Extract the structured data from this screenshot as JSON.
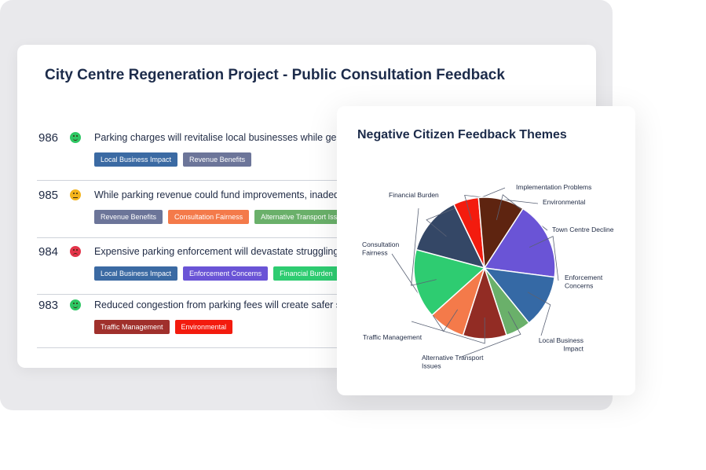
{
  "main": {
    "title": "City Centre Regeneration Project - Public Consultation Feedback",
    "rows": [
      {
        "number": "986",
        "sentiment": "positive",
        "text": "Parking charges will revitalise local businesses while generat",
        "tags": [
          {
            "label": "Local Business Impact",
            "color": "#3b6aa3"
          },
          {
            "label": "Revenue Benefits",
            "color": "#6c7599"
          }
        ]
      },
      {
        "number": "985",
        "sentiment": "neutral",
        "text": "While parking revenue could fund improvements, inadequat",
        "tags": [
          {
            "label": "Revenue Benefits",
            "color": "#6c7599"
          },
          {
            "label": "Consultation Fairness",
            "color": "#f47a4a"
          },
          {
            "label": "Alternative Transport Issue",
            "color": "#6ab06a"
          }
        ]
      },
      {
        "number": "984",
        "sentiment": "negative",
        "text": "Expensive parking enforcement will devastate struggling loc",
        "tags": [
          {
            "label": "Local Business Impact",
            "color": "#3b6aa3"
          },
          {
            "label": "Enforcement Concerns",
            "color": "#6a54d6"
          },
          {
            "label": "Financial Burden",
            "color": "#2ecc71"
          }
        ]
      },
      {
        "number": "983",
        "sentiment": "positive",
        "text": "Reduced congestion from parking fees will create safer stree",
        "tags": [
          {
            "label": "Traffic Management",
            "color": "#a0302c"
          },
          {
            "label": "Environmental",
            "color": "#f31b0e"
          }
        ]
      }
    ]
  },
  "popup": {
    "title": "Negative Citizen Feedback Themes"
  },
  "chart_data": {
    "type": "pie",
    "title": "Negative Citizen Feedback Themes",
    "slices": [
      {
        "label": "Implementation Problems",
        "value": 13.0,
        "color": "#344766"
      },
      {
        "label": "Environmental",
        "value": 5.5,
        "color": "#f31b0e"
      },
      {
        "label": "Town Centre Decline",
        "value": 10.0,
        "color": "#5e2410"
      },
      {
        "label": "Enforcement Concerns",
        "value": 17.0,
        "color": "#6a54d6"
      },
      {
        "label": "Local Business Impact",
        "value": 11.5,
        "color": "#3569a5"
      },
      {
        "label": "Alternative Transport Issues",
        "value": 5.5,
        "color": "#6ab06a"
      },
      {
        "label": "Traffic Management",
        "value": 9.5,
        "color": "#922c24"
      },
      {
        "label": "Consultation Fairness",
        "value": 8.0,
        "color": "#f47a4a"
      },
      {
        "label": "Financial Burden",
        "value": 15.0,
        "color": "#2ecc71"
      }
    ]
  }
}
